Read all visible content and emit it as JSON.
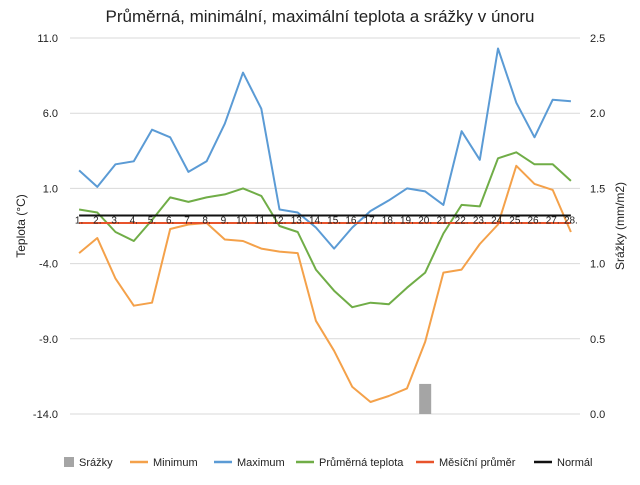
{
  "chart_data": {
    "type": "line",
    "title": "Průměrná, minimální, maximální teplota a srážky v únoru",
    "ylabel": "Teplota (°C)",
    "y2label": "Srážky (mm/m2)",
    "ylim": [
      -14,
      11
    ],
    "y2lim": [
      0,
      2.5
    ],
    "y_ticks": [
      "11.0",
      "6.0",
      "1.0",
      "-4.0",
      "-9.0",
      "-14.0"
    ],
    "y2_ticks": [
      "2.5",
      "2.0",
      "1.5",
      "1.0",
      "0.5",
      "0.0"
    ],
    "grid": true,
    "legend_position": "bottom",
    "categories": [
      "1.",
      "2.",
      "3.",
      "4.",
      "5.",
      "6.",
      "7.",
      "8.",
      "9.",
      "10.",
      "11.",
      "12.",
      "13.",
      "14.",
      "15.",
      "16.",
      "17.",
      "18.",
      "19.",
      "20.",
      "21.",
      "22.",
      "23.",
      "24.",
      "25.",
      "26.",
      "27.",
      "28."
    ],
    "series": [
      {
        "name": "Srážky",
        "type": "bar",
        "axis": "right",
        "color": "#a5a5a5",
        "values": [
          0,
          0,
          0,
          0,
          0,
          0,
          0,
          0,
          0,
          0,
          0,
          0,
          0,
          0,
          0,
          0,
          0,
          0,
          0,
          0.2,
          0,
          0,
          0,
          0,
          0,
          0,
          0,
          0
        ]
      },
      {
        "name": "Minimum",
        "type": "line",
        "axis": "left",
        "color": "#f4a14a",
        "values": [
          -3.3,
          -2.3,
          -5.0,
          -6.8,
          -6.6,
          -1.7,
          -1.4,
          -1.3,
          -2.4,
          -2.5,
          -3.0,
          -3.2,
          -3.3,
          -7.8,
          -9.8,
          -12.2,
          -13.2,
          -12.8,
          -12.3,
          -9.2,
          -4.6,
          -4.4,
          -2.7,
          -1.4,
          2.5,
          1.3,
          0.9,
          -1.9
        ]
      },
      {
        "name": "Maximum",
        "type": "line",
        "axis": "left",
        "color": "#5b9bd5",
        "values": [
          2.2,
          1.1,
          2.6,
          2.8,
          4.9,
          4.4,
          2.1,
          2.8,
          5.3,
          8.7,
          6.3,
          -0.4,
          -0.6,
          -1.6,
          -3.0,
          -1.6,
          -0.5,
          0.2,
          1.0,
          0.8,
          -0.1,
          4.8,
          2.9,
          10.3,
          6.7,
          4.4,
          6.9,
          6.8
        ]
      },
      {
        "name": "Průměrná teplota",
        "type": "line",
        "axis": "left",
        "color": "#70ad47",
        "values": [
          -0.4,
          -0.6,
          -1.9,
          -2.5,
          -1.1,
          0.4,
          0.1,
          0.4,
          0.6,
          1.0,
          0.5,
          -1.5,
          -1.9,
          -4.4,
          -5.8,
          -6.9,
          -6.6,
          -6.7,
          -5.6,
          -4.6,
          -2.0,
          -0.1,
          -0.2,
          3.0,
          3.4,
          2.6,
          2.6,
          1.5
        ]
      },
      {
        "name": "Měsíční průměr",
        "type": "line",
        "axis": "left",
        "color": "#e8532b",
        "values": [
          -1.3,
          -1.3,
          -1.3,
          -1.3,
          -1.3,
          -1.3,
          -1.3,
          -1.3,
          -1.3,
          -1.3,
          -1.3,
          -1.3,
          -1.3,
          -1.3,
          -1.3,
          -1.3,
          -1.3,
          -1.3,
          -1.3,
          -1.3,
          -1.3,
          -1.3,
          -1.3,
          -1.3,
          -1.3,
          -1.3,
          -1.3,
          -1.3
        ]
      },
      {
        "name": "Normál",
        "type": "line",
        "axis": "left",
        "color": "#111111",
        "values": [
          -0.8,
          -0.8,
          -0.8,
          -0.8,
          -0.8,
          -0.8,
          -0.8,
          -0.8,
          -0.8,
          -0.8,
          -0.8,
          -0.8,
          -0.8,
          -0.8,
          -0.8,
          -0.8,
          -0.8,
          -0.8,
          -0.8,
          -0.8,
          -0.8,
          -0.8,
          -0.8,
          -0.8,
          -0.8,
          -0.8,
          -0.8,
          -0.8
        ]
      }
    ]
  }
}
